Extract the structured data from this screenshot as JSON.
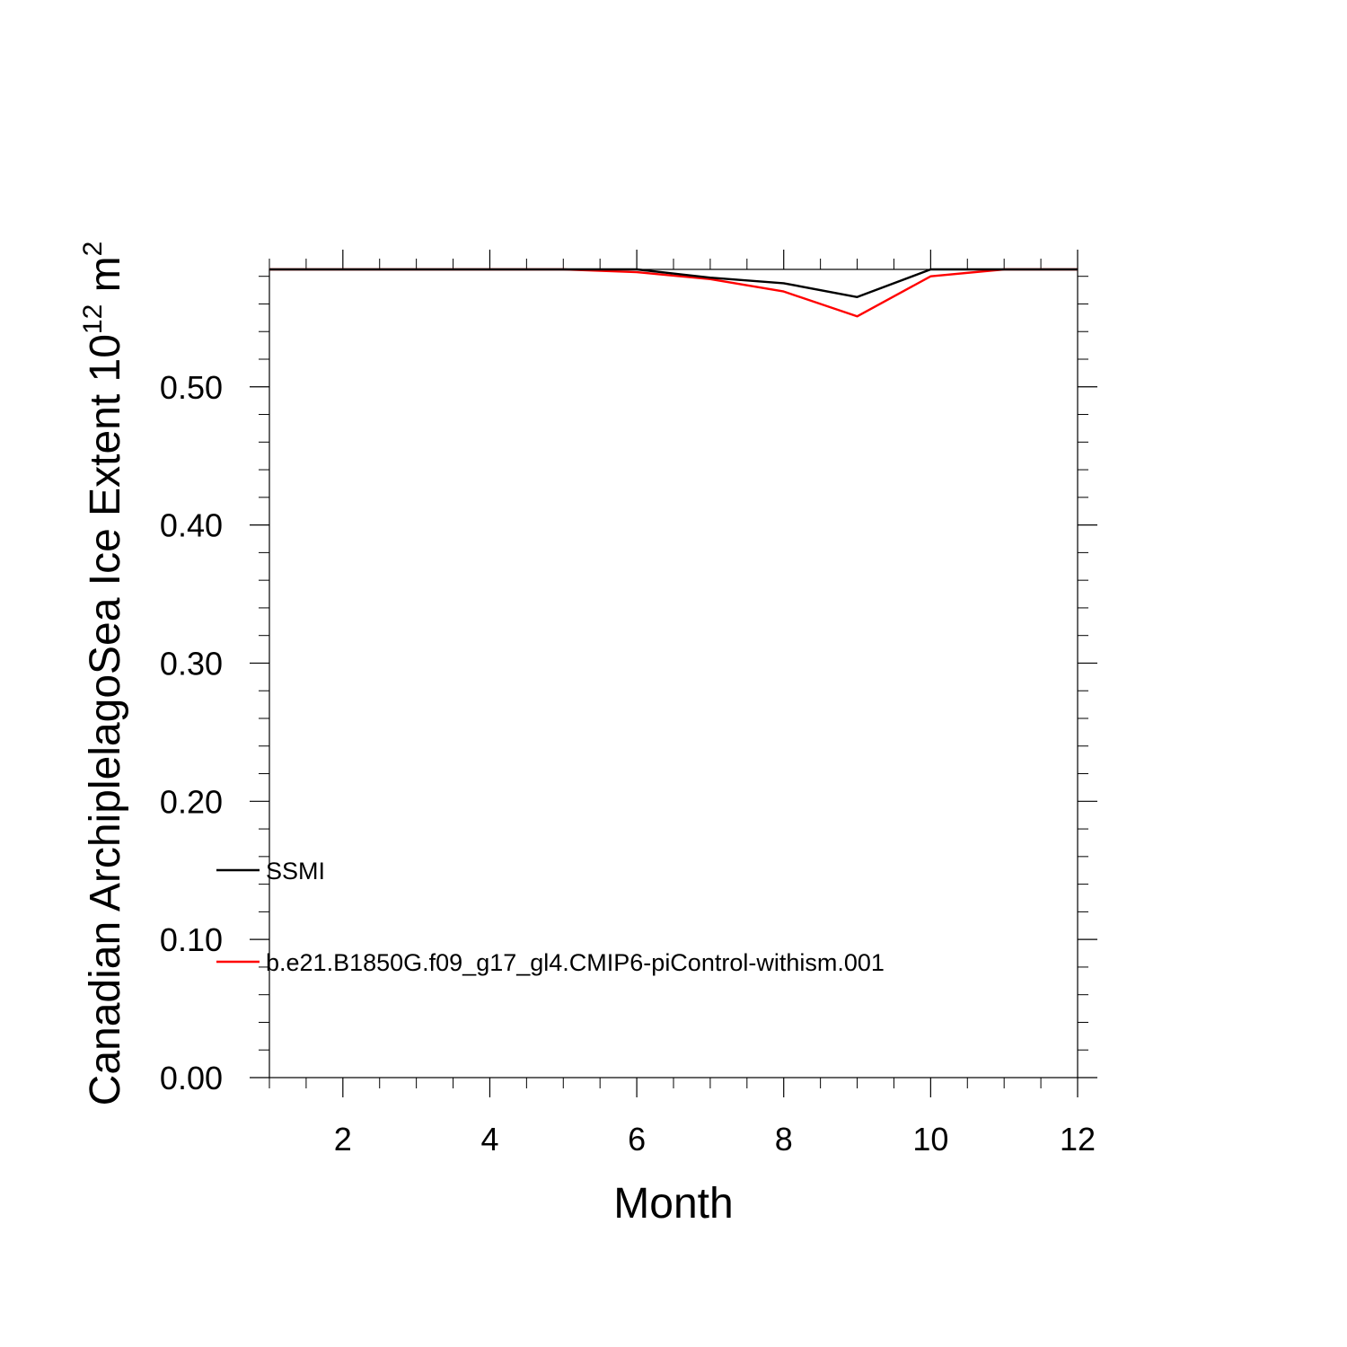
{
  "chart_data": {
    "type": "line",
    "title": "",
    "xlabel": "Month",
    "ylabel": "Canadian ArchiplelagoSea Ice Extent 10",
    "ylabel_exp": "12",
    "ylabel_unit": " m",
    "ylabel_unit_exp": "2",
    "xlim": [
      1,
      12
    ],
    "ylim": [
      0,
      0.585
    ],
    "x_ticks": [
      2,
      4,
      6,
      8,
      10,
      12
    ],
    "x_tick_labels": [
      "2",
      "4",
      "6",
      "8",
      "10",
      "12"
    ],
    "y_ticks": [
      0,
      0.1,
      0.2,
      0.3,
      0.4,
      0.5
    ],
    "y_tick_labels": [
      "0.00",
      "0.10",
      "0.20",
      "0.30",
      "0.40",
      "0.50"
    ],
    "x": [
      1,
      2,
      3,
      4,
      5,
      6,
      7,
      8,
      9,
      10,
      11,
      12
    ],
    "series": [
      {
        "name": "SSMI",
        "color": "#000000",
        "values": [
          0.585,
          0.585,
          0.585,
          0.585,
          0.585,
          0.585,
          0.579,
          0.575,
          0.565,
          0.585,
          0.585,
          0.585
        ]
      },
      {
        "name": "b.e21.B1850G.f09_g17_gl4.CMIP6-piControl-withism.001",
        "color": "#ff0000",
        "values": [
          0.585,
          0.585,
          0.585,
          0.585,
          0.585,
          0.583,
          0.578,
          0.569,
          0.551,
          0.58,
          0.585,
          0.585
        ]
      }
    ],
    "grid": false,
    "legend_position": "lower-left"
  }
}
